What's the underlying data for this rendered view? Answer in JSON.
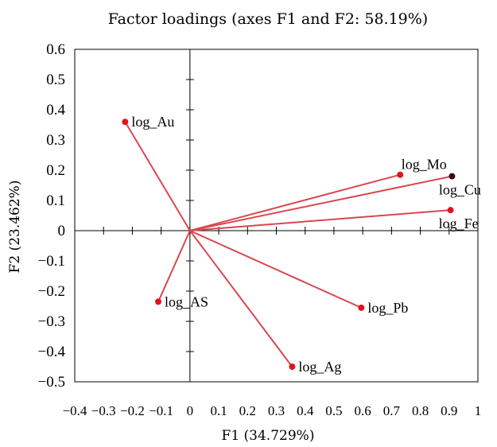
{
  "chart_data": {
    "type": "scatter",
    "title": "Factor loadings (axes F1 and F2: 58.19%)",
    "xlabel": "F1 (34.729%)",
    "ylabel": "F2 (23.462%)",
    "xlim": [
      -0.4,
      1
    ],
    "ylim": [
      -0.5,
      0.6
    ],
    "x_ticks": [
      -0.4,
      -0.3,
      -0.2,
      -0.1,
      0,
      0.1,
      0.2,
      0.3,
      0.4,
      0.5,
      0.6,
      0.7,
      0.8,
      0.9,
      1
    ],
    "x_tick_labels": [
      "−0.4",
      "−0.3",
      "−0.2",
      "−0.1",
      "0",
      "0.1",
      "0.2",
      "0.3",
      "0.4",
      "0.5",
      "0.6",
      "0.7",
      "0.8",
      "0.9",
      "1"
    ],
    "y_ticks": [
      0.6,
      0.5,
      0.4,
      0.3,
      0.2,
      0.1,
      0,
      -0.1,
      -0.2,
      -0.3,
      -0.4,
      -0.5
    ],
    "y_tick_labels": [
      "0.6",
      "0.5",
      "0.4",
      "0.3",
      "0.2",
      "0.1",
      "0",
      "−0.1",
      "−0.2",
      "−0.3",
      "−0.4",
      "−0.5"
    ],
    "grid": false,
    "vectors_from_origin": true,
    "vector_color": "#d9474f",
    "point_color": "#e0141e",
    "highlight_point_color": "#3a0d0d",
    "points": [
      {
        "label": "log_Au",
        "x": -0.225,
        "y": 0.36,
        "label_side": "right"
      },
      {
        "label": "log_Mo",
        "x": 0.73,
        "y": 0.185,
        "label_side": "above"
      },
      {
        "label": "log_Cu",
        "x": 0.91,
        "y": 0.18,
        "label_side": "below",
        "highlight": true
      },
      {
        "label": "log_Fe",
        "x": 0.905,
        "y": 0.068,
        "label_side": "below"
      },
      {
        "label": "log_AS",
        "x": -0.11,
        "y": -0.235,
        "label_side": "right"
      },
      {
        "label": "log_Pb",
        "x": 0.595,
        "y": -0.255,
        "label_side": "right"
      },
      {
        "label": "log_Ag",
        "x": 0.355,
        "y": -0.45,
        "label_side": "right"
      }
    ]
  }
}
